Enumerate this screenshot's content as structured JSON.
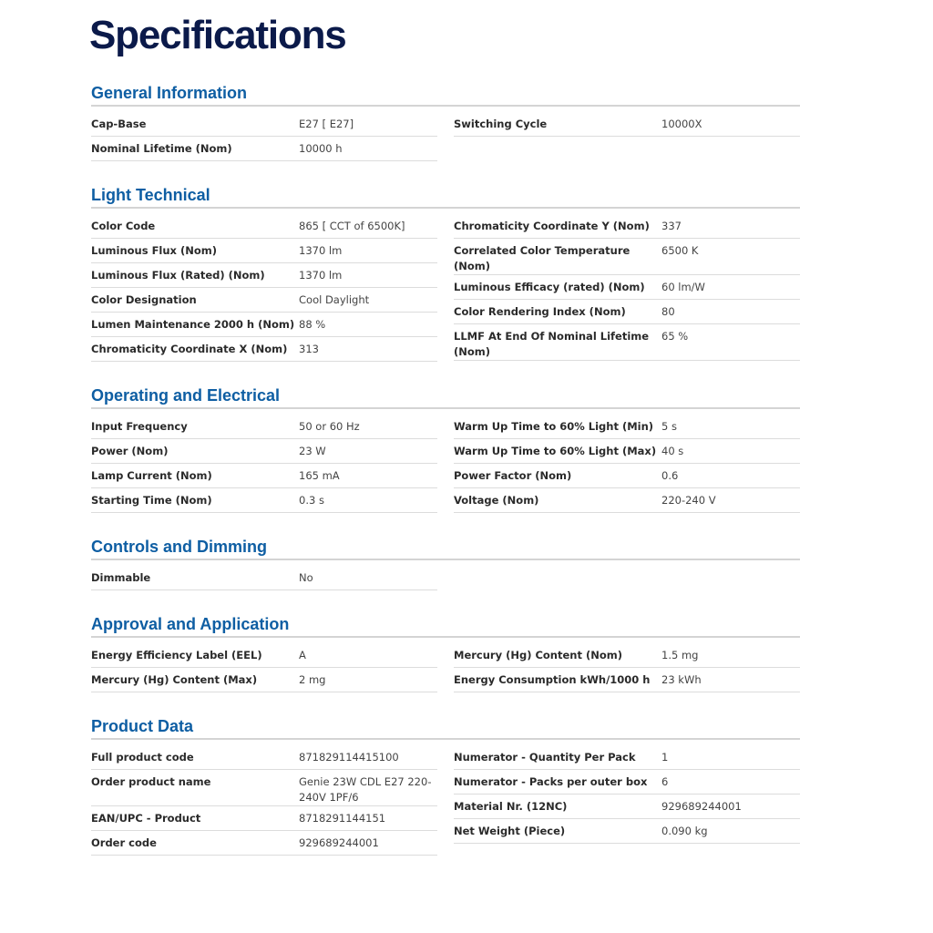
{
  "title": "Specifications",
  "sections": [
    {
      "title": "General Information",
      "left": [
        [
          "Cap-Base",
          "E27  [ E27]"
        ],
        [
          "Nominal Lifetime (Nom)",
          "10000 h"
        ]
      ],
      "right": [
        [
          "Switching Cycle",
          "10000X"
        ]
      ]
    },
    {
      "title": "Light Technical",
      "left": [
        [
          "Color Code",
          "865  [ CCT of 6500K]"
        ],
        [
          "Luminous Flux (Nom)",
          "1370 lm"
        ],
        [
          "Luminous Flux (Rated) (Nom)",
          "1370 lm"
        ],
        [
          "Color Designation",
          "Cool Daylight"
        ],
        [
          "Lumen Maintenance 2000 h (Nom)",
          "88 %"
        ],
        [
          "Chromaticity Coordinate X (Nom)",
          "313"
        ]
      ],
      "right": [
        [
          "Chromaticity Coordinate Y (Nom)",
          "337"
        ],
        [
          "Correlated Color Temperature (Nom)",
          "6500 K"
        ],
        [
          "Luminous Efficacy (rated) (Nom)",
          "60 lm/W"
        ],
        [
          "Color Rendering Index (Nom)",
          "80"
        ],
        [
          "LLMF At End Of Nominal Lifetime (Nom)",
          "65 %"
        ]
      ]
    },
    {
      "title": "Operating and Electrical",
      "left": [
        [
          "Input Frequency",
          "50 or 60 Hz"
        ],
        [
          "Power (Nom)",
          "23 W"
        ],
        [
          "Lamp Current (Nom)",
          "165 mA"
        ],
        [
          "Starting Time (Nom)",
          "0.3 s"
        ]
      ],
      "right": [
        [
          "Warm Up Time to 60% Light (Min)",
          "5 s"
        ],
        [
          "Warm Up Time to 60% Light (Max)",
          "40 s"
        ],
        [
          "Power Factor (Nom)",
          "0.6"
        ],
        [
          "Voltage (Nom)",
          "220-240 V"
        ]
      ]
    },
    {
      "title": "Controls and Dimming",
      "left": [
        [
          "Dimmable",
          "No"
        ]
      ],
      "right": []
    },
    {
      "title": "Approval and Application",
      "left": [
        [
          "Energy Efficiency Label (EEL)",
          "A"
        ],
        [
          "Mercury (Hg) Content (Max)",
          "2 mg"
        ]
      ],
      "right": [
        [
          "Mercury (Hg) Content (Nom)",
          "1.5 mg"
        ],
        [
          "Energy Consumption kWh/1000 h",
          "23 kWh"
        ]
      ]
    },
    {
      "title": "Product Data",
      "left": [
        [
          "Full product code",
          "871829114415100"
        ],
        [
          "Order product name",
          "Genie 23W CDL E27 220-240V 1PF/6"
        ],
        [
          "EAN/UPC - Product",
          "8718291144151"
        ],
        [
          "Order code",
          "929689244001"
        ]
      ],
      "right": [
        [
          "Numerator - Quantity Per Pack",
          "1"
        ],
        [
          "Numerator - Packs per outer box",
          "6"
        ],
        [
          "Material Nr. (12NC)",
          "929689244001"
        ],
        [
          "Net Weight (Piece)",
          "0.090 kg"
        ]
      ]
    }
  ]
}
